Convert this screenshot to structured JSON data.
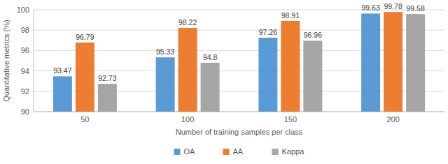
{
  "chart_data": {
    "type": "bar",
    "x_label": "Number of training samples per class",
    "y_label": "Quantitative metrics (%)",
    "categories": [
      "50",
      "100",
      "150",
      "200"
    ],
    "series": [
      {
        "name": "OA",
        "color": "#5b9bd5",
        "values": [
          93.47,
          95.33,
          97.26,
          99.63
        ]
      },
      {
        "name": "AA",
        "color": "#ed7d31",
        "values": [
          96.79,
          98.22,
          98.91,
          99.78
        ]
      },
      {
        "name": "Kappa",
        "color": "#a5a5a5",
        "values": [
          92.73,
          94.8,
          96.96,
          99.58
        ]
      }
    ],
    "ylim": [
      90,
      100
    ],
    "yticks": [
      90,
      92,
      94,
      96,
      98,
      100
    ],
    "grid": true,
    "legend": "bottom",
    "data_labels": true
  }
}
